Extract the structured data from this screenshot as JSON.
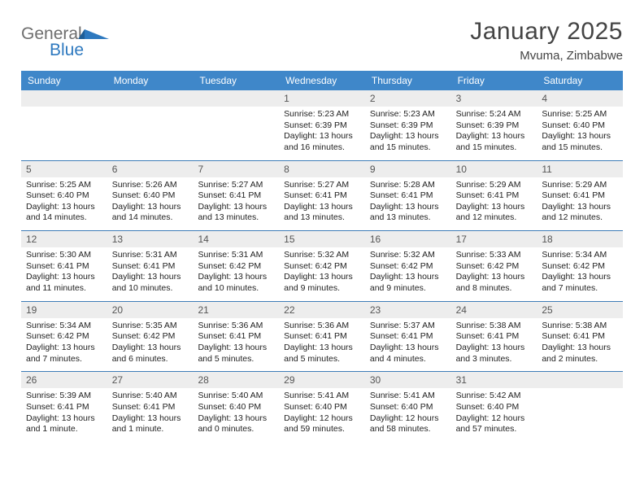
{
  "brand": {
    "word1": "General",
    "word2": "Blue",
    "word1_color": "#6e6e6e",
    "word2_color": "#2e79bf"
  },
  "title": "January 2025",
  "subtitle": "Mvuma, Zimbabwe",
  "header_row_bg": "#3f87c9",
  "header_row_text": "#ffffff",
  "week_divider_color": "#3f7db7",
  "daynum_bg": "#ededed",
  "page_bg": "#ffffff",
  "days_of_week": [
    "Sunday",
    "Monday",
    "Tuesday",
    "Wednesday",
    "Thursday",
    "Friday",
    "Saturday"
  ],
  "weeks": [
    [
      null,
      null,
      null,
      {
        "n": "1",
        "sunrise": "5:23 AM",
        "sunset": "6:39 PM",
        "daylight": "13 hours and 16 minutes."
      },
      {
        "n": "2",
        "sunrise": "5:23 AM",
        "sunset": "6:39 PM",
        "daylight": "13 hours and 15 minutes."
      },
      {
        "n": "3",
        "sunrise": "5:24 AM",
        "sunset": "6:39 PM",
        "daylight": "13 hours and 15 minutes."
      },
      {
        "n": "4",
        "sunrise": "5:25 AM",
        "sunset": "6:40 PM",
        "daylight": "13 hours and 15 minutes."
      }
    ],
    [
      {
        "n": "5",
        "sunrise": "5:25 AM",
        "sunset": "6:40 PM",
        "daylight": "13 hours and 14 minutes."
      },
      {
        "n": "6",
        "sunrise": "5:26 AM",
        "sunset": "6:40 PM",
        "daylight": "13 hours and 14 minutes."
      },
      {
        "n": "7",
        "sunrise": "5:27 AM",
        "sunset": "6:41 PM",
        "daylight": "13 hours and 13 minutes."
      },
      {
        "n": "8",
        "sunrise": "5:27 AM",
        "sunset": "6:41 PM",
        "daylight": "13 hours and 13 minutes."
      },
      {
        "n": "9",
        "sunrise": "5:28 AM",
        "sunset": "6:41 PM",
        "daylight": "13 hours and 13 minutes."
      },
      {
        "n": "10",
        "sunrise": "5:29 AM",
        "sunset": "6:41 PM",
        "daylight": "13 hours and 12 minutes."
      },
      {
        "n": "11",
        "sunrise": "5:29 AM",
        "sunset": "6:41 PM",
        "daylight": "13 hours and 12 minutes."
      }
    ],
    [
      {
        "n": "12",
        "sunrise": "5:30 AM",
        "sunset": "6:41 PM",
        "daylight": "13 hours and 11 minutes."
      },
      {
        "n": "13",
        "sunrise": "5:31 AM",
        "sunset": "6:41 PM",
        "daylight": "13 hours and 10 minutes."
      },
      {
        "n": "14",
        "sunrise": "5:31 AM",
        "sunset": "6:42 PM",
        "daylight": "13 hours and 10 minutes."
      },
      {
        "n": "15",
        "sunrise": "5:32 AM",
        "sunset": "6:42 PM",
        "daylight": "13 hours and 9 minutes."
      },
      {
        "n": "16",
        "sunrise": "5:32 AM",
        "sunset": "6:42 PM",
        "daylight": "13 hours and 9 minutes."
      },
      {
        "n": "17",
        "sunrise": "5:33 AM",
        "sunset": "6:42 PM",
        "daylight": "13 hours and 8 minutes."
      },
      {
        "n": "18",
        "sunrise": "5:34 AM",
        "sunset": "6:42 PM",
        "daylight": "13 hours and 7 minutes."
      }
    ],
    [
      {
        "n": "19",
        "sunrise": "5:34 AM",
        "sunset": "6:42 PM",
        "daylight": "13 hours and 7 minutes."
      },
      {
        "n": "20",
        "sunrise": "5:35 AM",
        "sunset": "6:42 PM",
        "daylight": "13 hours and 6 minutes."
      },
      {
        "n": "21",
        "sunrise": "5:36 AM",
        "sunset": "6:41 PM",
        "daylight": "13 hours and 5 minutes."
      },
      {
        "n": "22",
        "sunrise": "5:36 AM",
        "sunset": "6:41 PM",
        "daylight": "13 hours and 5 minutes."
      },
      {
        "n": "23",
        "sunrise": "5:37 AM",
        "sunset": "6:41 PM",
        "daylight": "13 hours and 4 minutes."
      },
      {
        "n": "24",
        "sunrise": "5:38 AM",
        "sunset": "6:41 PM",
        "daylight": "13 hours and 3 minutes."
      },
      {
        "n": "25",
        "sunrise": "5:38 AM",
        "sunset": "6:41 PM",
        "daylight": "13 hours and 2 minutes."
      }
    ],
    [
      {
        "n": "26",
        "sunrise": "5:39 AM",
        "sunset": "6:41 PM",
        "daylight": "13 hours and 1 minute."
      },
      {
        "n": "27",
        "sunrise": "5:40 AM",
        "sunset": "6:41 PM",
        "daylight": "13 hours and 1 minute."
      },
      {
        "n": "28",
        "sunrise": "5:40 AM",
        "sunset": "6:40 PM",
        "daylight": "13 hours and 0 minutes."
      },
      {
        "n": "29",
        "sunrise": "5:41 AM",
        "sunset": "6:40 PM",
        "daylight": "12 hours and 59 minutes."
      },
      {
        "n": "30",
        "sunrise": "5:41 AM",
        "sunset": "6:40 PM",
        "daylight": "12 hours and 58 minutes."
      },
      {
        "n": "31",
        "sunrise": "5:42 AM",
        "sunset": "6:40 PM",
        "daylight": "12 hours and 57 minutes."
      },
      null
    ]
  ]
}
